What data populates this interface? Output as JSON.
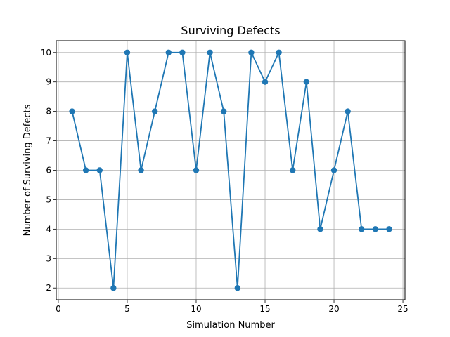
{
  "chart_data": {
    "type": "line",
    "title": "Surviving Defects",
    "xlabel": "Simulation Number",
    "ylabel": "Number of Surviving Defects",
    "xlim": [
      -0.15,
      25.15
    ],
    "ylim": [
      1.6,
      10.4
    ],
    "xticks": [
      0,
      5,
      10,
      15,
      20,
      25
    ],
    "yticks": [
      2,
      3,
      4,
      5,
      6,
      7,
      8,
      9,
      10
    ],
    "grid": true,
    "color": "#1f77b4",
    "series": [
      {
        "x": [
          1,
          2,
          3,
          4,
          5,
          6,
          7,
          8,
          9,
          10,
          11,
          12,
          13,
          14,
          15,
          16,
          17,
          18,
          19,
          20,
          21,
          22,
          23,
          24
        ],
        "values": [
          8,
          6,
          6,
          2,
          10,
          6,
          8,
          10,
          10,
          6,
          10,
          8,
          2,
          10,
          9,
          10,
          6,
          9,
          4,
          6,
          8,
          4,
          4,
          4
        ]
      }
    ]
  }
}
